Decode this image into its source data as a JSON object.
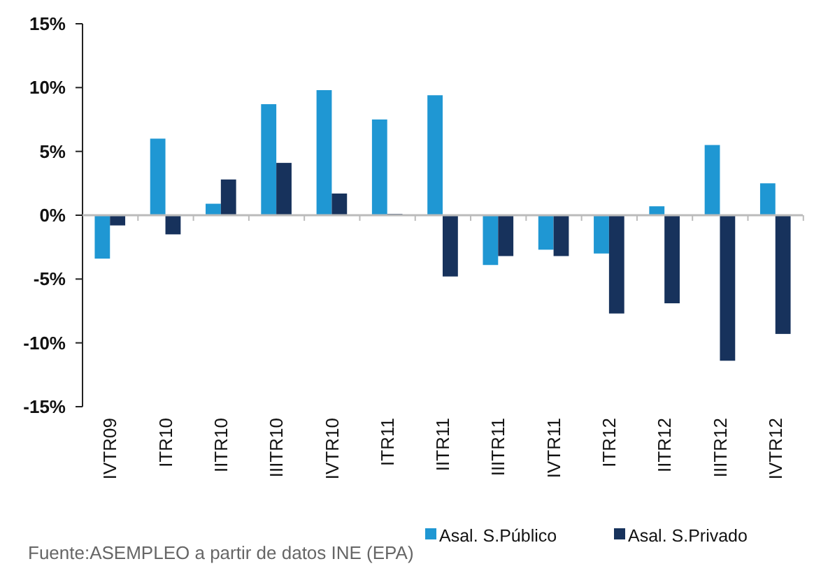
{
  "chart_data": {
    "type": "bar",
    "categories": [
      "IVTR09",
      "ITR10",
      "IITR10",
      "IIITR10",
      "IVTR10",
      "ITR11",
      "IITR11",
      "IIITR11",
      "IVTR11",
      "ITR12",
      "IITR12",
      "IIITR12",
      "IVTR12"
    ],
    "series": [
      {
        "name": "Asal. S.Público",
        "color": "#1f97d3",
        "values": [
          -3.4,
          6.0,
          0.9,
          8.7,
          9.8,
          7.5,
          9.4,
          -3.9,
          -2.7,
          -3.0,
          0.7,
          5.5,
          2.5
        ]
      },
      {
        "name": "Asal. S.Privado",
        "color": "#17325c",
        "values": [
          -0.8,
          -1.5,
          2.8,
          4.1,
          1.7,
          0.1,
          -4.8,
          -3.2,
          -3.2,
          -7.7,
          -6.9,
          -11.4,
          -9.3
        ]
      }
    ],
    "ylim": [
      -15,
      15
    ],
    "yticks": [
      {
        "value": -15,
        "label": "-15%"
      },
      {
        "value": -10,
        "label": "-10%"
      },
      {
        "value": -5,
        "label": "-5%"
      },
      {
        "value": 0,
        "label": "0%"
      },
      {
        "value": 5,
        "label": "5%"
      },
      {
        "value": 10,
        "label": "10%"
      },
      {
        "value": 15,
        "label": "15%"
      }
    ],
    "legend": "bottom right",
    "annotations": [
      "Fuente:ASEMPLEO a partir de datos INE (EPA)"
    ]
  }
}
